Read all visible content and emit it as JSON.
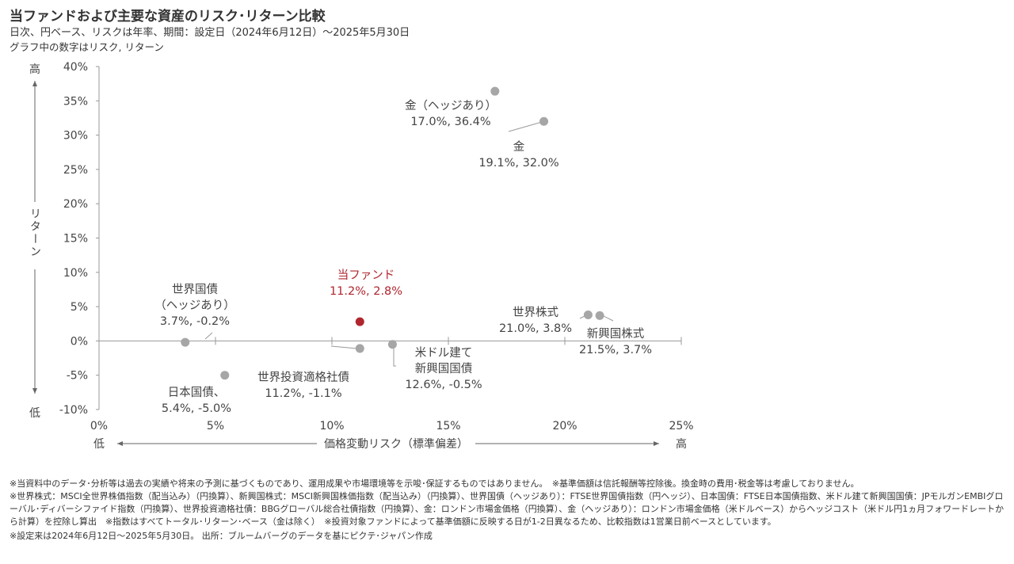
{
  "header": {
    "title": "当ファンドおよび主要な資産のリスク･リターン比較",
    "subtitle": "日次、円ベース、リスクは年率、期間：設定日（2024年6月12日）～2025年5月30日",
    "note": "グラフ中の数字はリスク, リターン"
  },
  "chart_data": {
    "type": "scatter",
    "title": "当ファンドおよび主要な資産のリスク･リターン比較",
    "xlabel": "価格変動リスク（標準偏差）",
    "ylabel": "リターン",
    "x_low_label": "低",
    "x_high_label": "高",
    "y_low_label": "低",
    "y_high_label": "高",
    "xlim": [
      0,
      25
    ],
    "ylim": [
      -10,
      40
    ],
    "x_ticks": [
      "0%",
      "5%",
      "10%",
      "15%",
      "20%",
      "25%"
    ],
    "x_tick_values": [
      0,
      5,
      10,
      15,
      20,
      25
    ],
    "y_ticks": [
      "40%",
      "35%",
      "30%",
      "25%",
      "20%",
      "15%",
      "10%",
      "5%",
      "0%",
      "-5%",
      "-10%"
    ],
    "y_tick_values": [
      40,
      35,
      30,
      25,
      20,
      15,
      10,
      5,
      0,
      -5,
      -10
    ],
    "grid": false,
    "points": [
      {
        "name": "当ファンド",
        "value_label": "11.2%, 2.8%",
        "x": 11.2,
        "y": 2.8,
        "color": "#b0262e",
        "highlight": true
      },
      {
        "name": "金（ヘッジあり）",
        "value_label": "17.0%, 36.4%",
        "x": 17.0,
        "y": 36.4,
        "color": "#a6a6a6"
      },
      {
        "name": "金",
        "value_label": "19.1%, 32.0%",
        "x": 19.1,
        "y": 32.0,
        "color": "#a6a6a6"
      },
      {
        "name": "世界株式",
        "value_label": "21.0%, 3.8%",
        "x": 21.0,
        "y": 3.8,
        "color": "#a6a6a6"
      },
      {
        "name": "新興国株式",
        "value_label": "21.5%, 3.7%",
        "x": 21.5,
        "y": 3.7,
        "color": "#a6a6a6"
      },
      {
        "name": "世界国債\n（ヘッジあり）",
        "value_label": "3.7%, -0.2%",
        "x": 3.7,
        "y": -0.2,
        "color": "#a6a6a6"
      },
      {
        "name": "日本国債、",
        "value_label": "5.4%, -5.0%",
        "x": 5.4,
        "y": -5.0,
        "color": "#a6a6a6"
      },
      {
        "name": "世界投資適格社債",
        "value_label": "11.2%, -1.1%",
        "x": 11.2,
        "y": -1.1,
        "color": "#a6a6a6"
      },
      {
        "name": "米ドル建て\n新興国国債",
        "value_label": "12.6%, -0.5%",
        "x": 12.6,
        "y": -0.5,
        "color": "#a6a6a6"
      }
    ]
  },
  "footnotes": [
    "※当資料中のデータ･分析等は過去の実績や将来の予測に基づくものであり、運用成果や市場環境等を示唆･保証するものではありません。　※基準価額は信託報酬等控除後。換金時の費用･税金等は考慮しておりません。",
    "※世界株式：MSCI全世界株価指数（配当込み）（円換算）、新興国株式：MSCI新興国株価指数（配当込み）（円換算）、世界国債（ヘッジあり）：FTSE世界国債指数（円ヘッジ）、日本国債：FTSE日本国債指数、米ドル建て新興国国債：JPモルガンEMBIグローバル･ディバーシファイド指数（円換算）、世界投資適格社債：BBGグローバル総合社債指数（円換算）、金：ロンドン市場金価格（円換算）、金（ヘッジあり）：ロンドン市場金価格（米ドルベース）からヘッジコスト（米ドル円1ヵ月フォワードレートから計算）を控除し算出　※指数はすべてトータル･リターン･ベース（金は除く）　※投資対象ファンドによって基準価額に反映する日が1-2日異なるため、比較指数は1営業日前ベースとしています。",
    "※設定来は2024年6月12日～2025年5月30日。 出所：ブルームバーグのデータを基にピクテ･ジャパン作成"
  ]
}
